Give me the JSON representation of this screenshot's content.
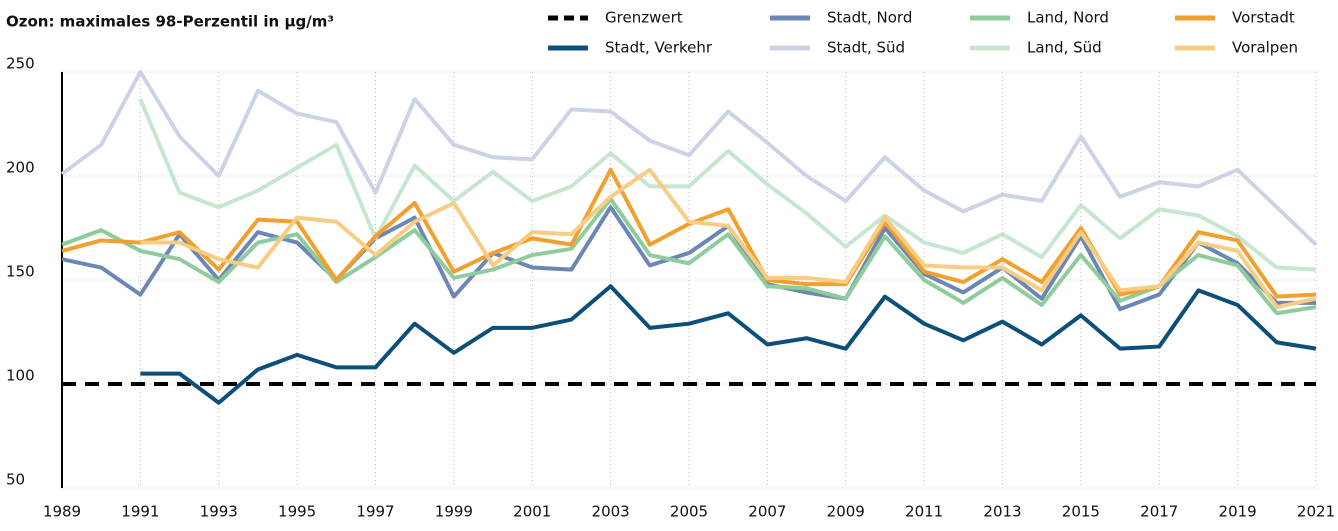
{
  "chart_data": {
    "type": "line",
    "title": "Ozon: maximales 98-Perzentil in µg/m³",
    "x": [
      1989,
      1990,
      1991,
      1992,
      1993,
      1994,
      1995,
      1996,
      1997,
      1998,
      1999,
      2000,
      2001,
      2002,
      2003,
      2004,
      2005,
      2006,
      2007,
      2008,
      2009,
      2010,
      2011,
      2012,
      2013,
      2014,
      2015,
      2016,
      2017,
      2018,
      2019,
      2020,
      2021
    ],
    "xlim": [
      1989,
      2021
    ],
    "xticks": [
      1989,
      1991,
      1993,
      1995,
      1997,
      1999,
      2001,
      2003,
      2005,
      2007,
      2009,
      2011,
      2013,
      2015,
      2017,
      2019,
      2021
    ],
    "ylim": [
      50,
      250
    ],
    "yticks": [
      50,
      100,
      150,
      200,
      250
    ],
    "grid": true,
    "legend": "top",
    "series": [
      {
        "name": "Grenzwert",
        "color": "#000000",
        "dashed": true,
        "values": [
          100,
          100,
          100,
          100,
          100,
          100,
          100,
          100,
          100,
          100,
          100,
          100,
          100,
          100,
          100,
          100,
          100,
          100,
          100,
          100,
          100,
          100,
          100,
          100,
          100,
          100,
          100,
          100,
          100,
          100,
          100,
          100,
          100
        ]
      },
      {
        "name": "Stadt, Verkehr",
        "color": "#0b4f7a",
        "values": [
          null,
          null,
          105,
          105,
          91,
          107,
          114,
          108,
          108,
          129,
          115,
          127,
          127,
          131,
          147,
          127,
          129,
          134,
          119,
          122,
          117,
          142,
          129,
          121,
          130,
          119,
          133,
          117,
          118,
          145,
          138,
          120,
          117
        ]
      },
      {
        "name": "Stadt, Nord",
        "color": "#6b87b5",
        "values": [
          160,
          156,
          143,
          172,
          150,
          173,
          168,
          150,
          170,
          180,
          142,
          163,
          156,
          155,
          185,
          157,
          163,
          176,
          148,
          144,
          141,
          175,
          153,
          144,
          156,
          141,
          171,
          136,
          143,
          168,
          158,
          139,
          139
        ]
      },
      {
        "name": "Stadt, Süd",
        "color": "#cdd3e6",
        "values": [
          201,
          215,
          250,
          219,
          200,
          241,
          230,
          226,
          192,
          237,
          215,
          209,
          208,
          232,
          231,
          217,
          210,
          231,
          216,
          200,
          188,
          209,
          193,
          183,
          191,
          188,
          219,
          190,
          197,
          195,
          203,
          185,
          167
        ]
      },
      {
        "name": "Land, Nord",
        "color": "#8fcc9c",
        "values": [
          167,
          174,
          164,
          160,
          149,
          168,
          172,
          149,
          161,
          174,
          151,
          155,
          162,
          165,
          189,
          162,
          158,
          172,
          147,
          146,
          141,
          171,
          150,
          139,
          151,
          138,
          162,
          140,
          147,
          162,
          157,
          134,
          137
        ]
      },
      {
        "name": "Land, Süd",
        "color": "#c7e6cf",
        "values": [
          null,
          null,
          237,
          192,
          185,
          193,
          204,
          215,
          170,
          205,
          188,
          202,
          188,
          195,
          211,
          195,
          195,
          212,
          196,
          182,
          166,
          181,
          168,
          163,
          172,
          161,
          186,
          170,
          184,
          181,
          171,
          156,
          155
        ]
      },
      {
        "name": "Vorstadt",
        "color": "#f29f2e",
        "values": [
          164,
          169,
          168,
          173,
          155,
          179,
          178,
          150,
          171,
          187,
          154,
          163,
          170,
          167,
          203,
          167,
          177,
          184,
          150,
          148,
          148,
          178,
          154,
          149,
          160,
          149,
          175,
          143,
          147,
          173,
          169,
          142,
          143
        ]
      },
      {
        "name": "Voralpen",
        "color": "#f8cc82",
        "values": [
          null,
          null,
          168,
          168,
          160,
          156,
          180,
          178,
          162,
          178,
          187,
          157,
          173,
          172,
          190,
          203,
          178,
          176,
          151,
          151,
          149,
          180,
          157,
          156,
          156,
          145,
          173,
          145,
          147,
          168,
          164,
          137,
          141
        ]
      }
    ]
  }
}
